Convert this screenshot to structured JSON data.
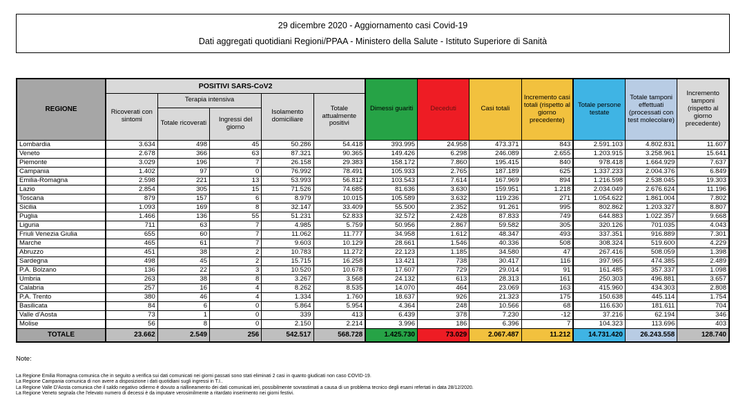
{
  "title": {
    "line1": "29 dicembre 2020 - Aggiornamento casi Covid-19",
    "line2": "Dati aggregati quotidiani Regioni/PPAA - Ministero della Salute - Istituto Superiore di Sanità"
  },
  "table": {
    "header": {
      "regione": "REGIONE",
      "positivi_group": "POSITIVI SARS-CoV2",
      "ricoverati": "Ricoverati con sintomi",
      "terapia_group": "Terapia intensiva",
      "totale_ricoverati": "Totale ricoverati",
      "ingressi_giorno": "Ingressi del giorno",
      "isolamento": "Isolamento domiciliare",
      "attualmente_positivi": "Totale attualmente positivi",
      "dimessi": "Dimessi guariti",
      "deceduti": "Deceduti",
      "casi_totali": "Casi totali",
      "incremento_casi": "Incremento casi totali (rispetto al giorno precedente)",
      "persone_testate": "Totale persone testate",
      "tamponi": "Totale tamponi effettuati (processati con test molecolare)",
      "incremento_tamponi": "Incremento tamponi (rispetto al giorno precedente)"
    },
    "rows": [
      {
        "name": "Lombardia",
        "values": [
          "3.634",
          "498",
          "45",
          "50.286",
          "54.418",
          "393.995",
          "24.958",
          "473.371",
          "843",
          "2.591.103",
          "4.802.831",
          "11.607"
        ]
      },
      {
        "name": "Veneto",
        "values": [
          "2.678",
          "366",
          "63",
          "87.321",
          "90.365",
          "149.426",
          "6.298",
          "246.089",
          "2.655",
          "1.203.915",
          "3.258.961",
          "15.641"
        ]
      },
      {
        "name": "Piemonte",
        "values": [
          "3.029",
          "196",
          "7",
          "26.158",
          "29.383",
          "158.172",
          "7.860",
          "195.415",
          "840",
          "978.418",
          "1.664.929",
          "7.637"
        ]
      },
      {
        "name": "Campania",
        "values": [
          "1.402",
          "97",
          "0",
          "76.992",
          "78.491",
          "105.933",
          "2.765",
          "187.189",
          "625",
          "1.337.233",
          "2.004.376",
          "6.849"
        ]
      },
      {
        "name": "Emilia-Romagna",
        "values": [
          "2.598",
          "221",
          "13",
          "53.993",
          "56.812",
          "103.543",
          "7.614",
          "167.969",
          "894",
          "1.216.598",
          "2.538.045",
          "19.303"
        ]
      },
      {
        "name": "Lazio",
        "values": [
          "2.854",
          "305",
          "15",
          "71.526",
          "74.685",
          "81.636",
          "3.630",
          "159.951",
          "1.218",
          "2.034.049",
          "2.676.624",
          "11.196"
        ]
      },
      {
        "name": "Toscana",
        "values": [
          "879",
          "157",
          "6",
          "8.979",
          "10.015",
          "105.589",
          "3.632",
          "119.236",
          "271",
          "1.054.622",
          "1.861.004",
          "7.802"
        ]
      },
      {
        "name": "Sicilia",
        "values": [
          "1.093",
          "169",
          "8",
          "32.147",
          "33.409",
          "55.500",
          "2.352",
          "91.261",
          "995",
          "802.862",
          "1.203.327",
          "8.807"
        ]
      },
      {
        "name": "Puglia",
        "values": [
          "1.466",
          "136",
          "55",
          "51.231",
          "52.833",
          "32.572",
          "2.428",
          "87.833",
          "749",
          "644.883",
          "1.022.357",
          "9.668"
        ]
      },
      {
        "name": "Liguria",
        "values": [
          "711",
          "63",
          "7",
          "4.985",
          "5.759",
          "50.956",
          "2.867",
          "59.582",
          "305",
          "320.126",
          "701.035",
          "4.043"
        ]
      },
      {
        "name": "Friuli Venezia Giulia",
        "values": [
          "655",
          "60",
          "7",
          "11.062",
          "11.777",
          "34.958",
          "1.612",
          "48.347",
          "493",
          "337.351",
          "916.889",
          "7.301"
        ]
      },
      {
        "name": "Marche",
        "values": [
          "465",
          "61",
          "7",
          "9.603",
          "10.129",
          "28.661",
          "1.546",
          "40.336",
          "508",
          "308.324",
          "519.600",
          "4.229"
        ]
      },
      {
        "name": "Abruzzo",
        "values": [
          "451",
          "38",
          "2",
          "10.783",
          "11.272",
          "22.123",
          "1.185",
          "34.580",
          "47",
          "267.416",
          "508.059",
          "1.398"
        ]
      },
      {
        "name": "Sardegna",
        "values": [
          "498",
          "45",
          "2",
          "15.715",
          "16.258",
          "13.421",
          "738",
          "30.417",
          "116",
          "397.965",
          "474.385",
          "2.489"
        ]
      },
      {
        "name": "P.A. Bolzano",
        "values": [
          "136",
          "22",
          "3",
          "10.520",
          "10.678",
          "17.607",
          "729",
          "29.014",
          "91",
          "161.485",
          "357.337",
          "1.098"
        ]
      },
      {
        "name": "Umbria",
        "values": [
          "263",
          "38",
          "8",
          "3.267",
          "3.568",
          "24.132",
          "613",
          "28.313",
          "161",
          "250.303",
          "496.881",
          "3.657"
        ]
      },
      {
        "name": "Calabria",
        "values": [
          "257",
          "16",
          "4",
          "8.262",
          "8.535",
          "14.070",
          "464",
          "23.069",
          "163",
          "415.960",
          "434.303",
          "2.808"
        ]
      },
      {
        "name": "P.A. Trento",
        "values": [
          "380",
          "46",
          "4",
          "1.334",
          "1.760",
          "18.637",
          "926",
          "21.323",
          "175",
          "150.638",
          "445.114",
          "1.754"
        ]
      },
      {
        "name": "Basilicata",
        "values": [
          "84",
          "6",
          "0",
          "5.864",
          "5.954",
          "4.364",
          "248",
          "10.566",
          "68",
          "116.630",
          "181.611",
          "704"
        ]
      },
      {
        "name": "Valle d'Aosta",
        "values": [
          "73",
          "1",
          "0",
          "339",
          "413",
          "6.439",
          "378",
          "7.230",
          "-12",
          "37.216",
          "62.194",
          "346"
        ]
      },
      {
        "name": "Molise",
        "values": [
          "56",
          "8",
          "0",
          "2.150",
          "2.214",
          "3.996",
          "186",
          "6.396",
          "7",
          "104.323",
          "113.696",
          "403"
        ]
      }
    ],
    "totale": {
      "name": "TOTALE",
      "values": [
        "23.662",
        "2.549",
        "256",
        "542.517",
        "568.728",
        "1.425.730",
        "73.029",
        "2.067.487",
        "11.212",
        "14.731.420",
        "26.243.558",
        "128.740"
      ]
    }
  },
  "notes": {
    "heading": "Note:",
    "lines": [
      "La Regione Emilia Romagna comunica che in seguito a verifica sui dati comunicati nei giorni passati sono stati eliminati 2 casi in quanto giudicati non caso COVID-19.",
      "La Regione Campania comunica di non avere a disposizione i dati quotidiani sugli ingressi in T.I..",
      "La Regione Valle D'Aosta comunica che il saldo negativo odierno è dovuto a riallineamento dei dati comunicati ieri, possibilmente sovrastimati a causa di un problema tecnico degli esami refertati in data 28/12/2020.",
      "La Regione Veneto segnala che l'elevato numero di decessi è da imputare verosimilmente a ritardato inserimento nei giorni festivi."
    ]
  },
  "colors": {
    "green": "#26A346",
    "red": "#EE1C24",
    "yellow": "#F2C13E",
    "sky_blue": "#3FB4E4",
    "light_blue": "#B8CCE4",
    "dark_gray": "#A6A6A6",
    "light_gray": "#D9D9D9",
    "totale_gray": "#BFBFBF"
  }
}
